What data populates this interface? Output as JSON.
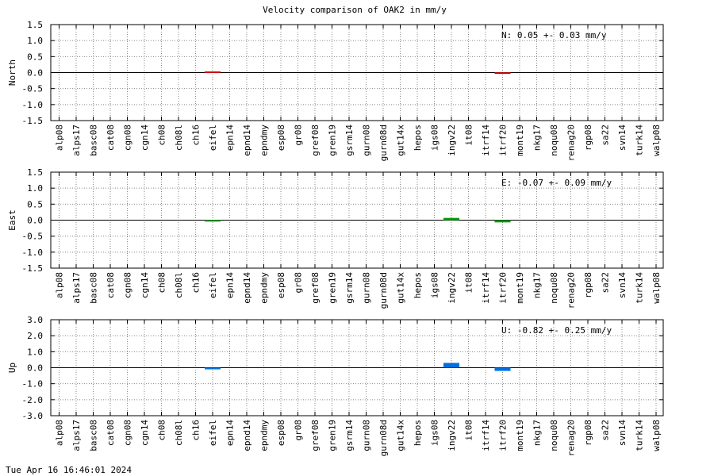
{
  "title": "Velocity comparison of OAK2 in mm/y",
  "footer": "Tue Apr 16 16:46:01 2024",
  "colors": {
    "north": "#cc0000",
    "east": "#00a000",
    "up": "#0070e0",
    "grid": "#888888",
    "zero": "#000000"
  },
  "chart_data": [
    {
      "type": "bar",
      "ylabel": "North",
      "ylim": [
        -1.5,
        1.5
      ],
      "yticks": [
        "1.5",
        "1.0",
        "0.5",
        "0.0",
        "-0.5",
        "-1.0",
        "-1.5"
      ],
      "yticks_values": [
        1.5,
        1.0,
        0.5,
        0.0,
        -0.5,
        -1.0,
        -1.5
      ],
      "annotation": "N:   0.05 +-  0.03 mm/y",
      "grid": true,
      "color_key": "north",
      "categories": [
        "alp08",
        "alps17",
        "basc08",
        "cat08",
        "cgn08",
        "cgn14",
        "ch08",
        "ch08l",
        "ch16",
        "eifel",
        "epn14",
        "epnd14",
        "epndmy",
        "esp08",
        "gr08",
        "gref08",
        "gren19",
        "gsrm14",
        "gurn08",
        "gurn08d",
        "gut14x",
        "hepos",
        "igs08",
        "ingv22",
        "it08",
        "itrf14",
        "itrf20",
        "mont19",
        "nkg17",
        "noqu08",
        "renag20",
        "rgp08",
        "sa22",
        "svn14",
        "turk14",
        "walp08"
      ],
      "series": [
        {
          "values": [
            null,
            null,
            null,
            null,
            null,
            null,
            null,
            null,
            null,
            0.02,
            null,
            null,
            null,
            null,
            null,
            null,
            null,
            null,
            null,
            null,
            null,
            null,
            null,
            null,
            null,
            null,
            -0.03,
            null,
            null,
            null,
            null,
            null,
            null,
            null,
            null,
            null
          ]
        }
      ]
    },
    {
      "type": "bar",
      "ylabel": "East",
      "ylim": [
        -1.5,
        1.5
      ],
      "yticks": [
        "1.5",
        "1.0",
        "0.5",
        "0.0",
        "-0.5",
        "-1.0",
        "-1.5"
      ],
      "yticks_values": [
        1.5,
        1.0,
        0.5,
        0.0,
        -0.5,
        -1.0,
        -1.5
      ],
      "annotation": "E:  -0.07 +-  0.09 mm/y",
      "grid": true,
      "color_key": "east",
      "categories": [
        "alp08",
        "alps17",
        "basc08",
        "cat08",
        "cgn08",
        "cgn14",
        "ch08",
        "ch08l",
        "ch16",
        "eifel",
        "epn14",
        "epnd14",
        "epndmy",
        "esp08",
        "gr08",
        "gref08",
        "gren19",
        "gsrm14",
        "gurn08",
        "gurn08d",
        "gut14x",
        "hepos",
        "igs08",
        "ingv22",
        "it08",
        "itrf14",
        "itrf20",
        "mont19",
        "nkg17",
        "noqu08",
        "renag20",
        "rgp08",
        "sa22",
        "svn14",
        "turk14",
        "walp08"
      ],
      "series": [
        {
          "values": [
            null,
            null,
            null,
            null,
            null,
            null,
            null,
            null,
            null,
            -0.04,
            null,
            null,
            null,
            null,
            null,
            null,
            null,
            null,
            null,
            null,
            null,
            null,
            null,
            0.07,
            null,
            null,
            -0.07,
            null,
            null,
            null,
            null,
            null,
            null,
            null,
            null,
            null
          ]
        }
      ]
    },
    {
      "type": "bar",
      "ylabel": "Up",
      "ylim": [
        -3.0,
        3.0
      ],
      "yticks": [
        "3.0",
        "2.0",
        "1.0",
        "0.0",
        "-1.0",
        "-2.0",
        "-3.0"
      ],
      "yticks_values": [
        3.0,
        2.0,
        1.0,
        0.0,
        -1.0,
        -2.0,
        -3.0
      ],
      "annotation": "U:  -0.82 +-  0.25 mm/y",
      "grid": true,
      "color_key": "up",
      "categories": [
        "alp08",
        "alps17",
        "basc08",
        "cat08",
        "cgn08",
        "cgn14",
        "ch08",
        "ch08l",
        "ch16",
        "eifel",
        "epn14",
        "epnd14",
        "epndmy",
        "esp08",
        "gr08",
        "gref08",
        "gren19",
        "gsrm14",
        "gurn08",
        "gurn08d",
        "gut14x",
        "hepos",
        "igs08",
        "ingv22",
        "it08",
        "itrf14",
        "itrf20",
        "mont19",
        "nkg17",
        "noqu08",
        "renag20",
        "rgp08",
        "sa22",
        "svn14",
        "turk14",
        "walp08"
      ],
      "series": [
        {
          "values": [
            null,
            null,
            null,
            null,
            null,
            null,
            null,
            null,
            null,
            -0.1,
            null,
            null,
            null,
            null,
            null,
            null,
            null,
            null,
            null,
            null,
            null,
            null,
            null,
            0.3,
            null,
            null,
            -0.2,
            null,
            null,
            null,
            null,
            null,
            null,
            null,
            null,
            null
          ]
        }
      ]
    }
  ]
}
